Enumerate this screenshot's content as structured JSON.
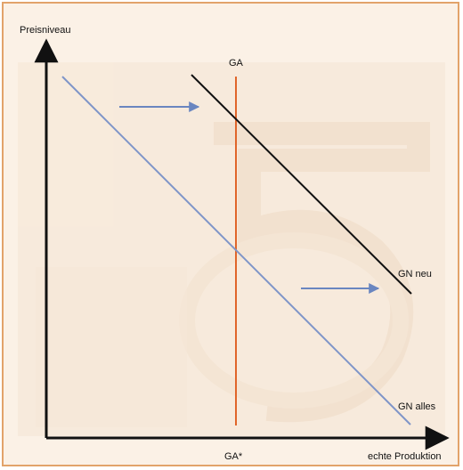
{
  "labels": {
    "y_axis": "Preisniveau",
    "x_axis": "echte Produktion",
    "ga": "GA",
    "ga_star": "GA*",
    "gn_neu": "GN neu",
    "gn_alles": "GN alles"
  },
  "colors": {
    "background": "#fbf1e6",
    "border": "#e2a36a",
    "axis": "#111111",
    "ga_line": "#e0652a",
    "gn_alles_line": "#7f95c8",
    "gn_neu_line": "#111111",
    "arrows": "#6a86c0",
    "watermark": "#edd9c4"
  }
}
